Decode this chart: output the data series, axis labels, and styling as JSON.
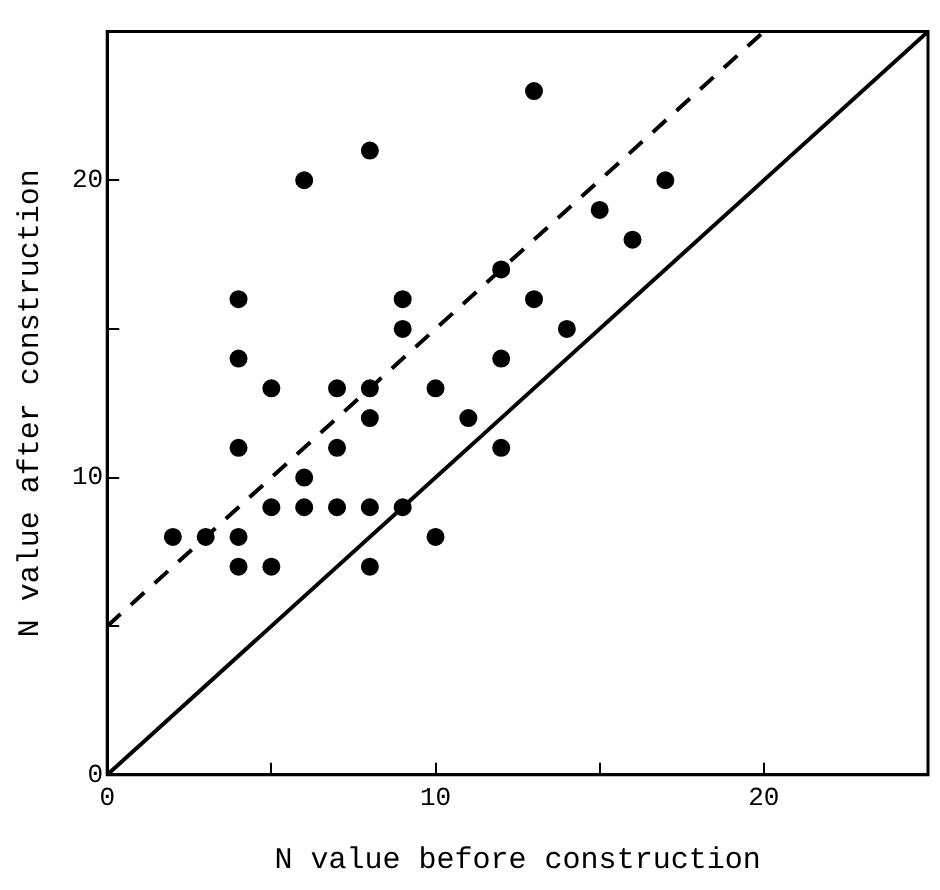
{
  "chart_data": {
    "type": "scatter",
    "xlabel": "N value before construction",
    "ylabel": "N value after construction",
    "xlim": [
      0,
      25
    ],
    "ylim": [
      0,
      25
    ],
    "xticks": [
      0,
      {
        "value": 5,
        "label": null
      },
      10,
      {
        "value": 15,
        "label": null
      },
      20
    ],
    "yticks": [
      0,
      {
        "value": 5,
        "label": null
      },
      10,
      {
        "value": 15,
        "label": null
      },
      20
    ],
    "grid": false,
    "legend": false,
    "marker": "circle",
    "series": [
      {
        "color": "#000000",
        "x": [
          2,
          3,
          4,
          4,
          4,
          4,
          4,
          5,
          5,
          5,
          6,
          6,
          6,
          7,
          7,
          7,
          8,
          8,
          8,
          8,
          8,
          9,
          9,
          9,
          10,
          10,
          11,
          12,
          12,
          12,
          13,
          13,
          14,
          15,
          16,
          17
        ],
        "values": [
          8,
          8,
          8,
          7,
          11,
          14,
          16,
          7,
          9,
          13,
          9,
          10,
          20,
          9,
          11,
          13,
          7,
          9,
          12,
          13,
          21,
          9,
          15,
          16,
          8,
          13,
          12,
          11,
          14,
          17,
          16,
          23,
          15,
          19,
          18,
          20
        ]
      },
      {
        "type": "line",
        "color": "#000000",
        "line_style": "solid",
        "marker": "none",
        "x": [
          0,
          25
        ],
        "values": [
          0,
          25
        ]
      },
      {
        "type": "line",
        "color": "#000000",
        "line_style": "dashed",
        "marker": "none",
        "x": [
          0,
          20
        ],
        "values": [
          5,
          25
        ]
      }
    ]
  }
}
